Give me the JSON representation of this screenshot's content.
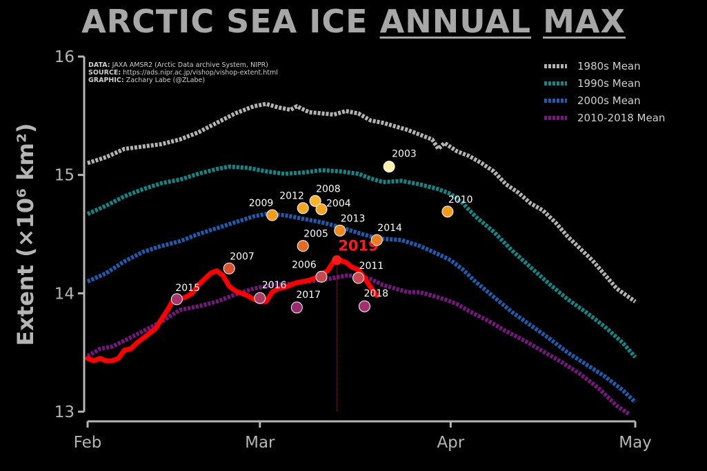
{
  "title": {
    "part1": "ARCTIC SEA ICE",
    "part2": "ANNUAL",
    "part3": "MAX"
  },
  "credits": [
    {
      "key": "DATA:",
      "text": " JAXA AMSR2 (Arctic Data archive System, NIPR)"
    },
    {
      "key": "SOURCE:",
      "text": " https://ads.nipr.ac.jp/vishop/vishop-extent.html"
    },
    {
      "key": "GRAPHIC:",
      "text": " Zachary Labe (@ZLabe)"
    }
  ],
  "chart_data": {
    "type": "line",
    "ylabel": "Extent (×10⁶ km²)",
    "ylim": [
      13,
      16
    ],
    "yticks": [
      13,
      14,
      15,
      16
    ],
    "xlim": [
      0,
      89
    ],
    "xticks": [
      {
        "value": 0,
        "label": "Feb"
      },
      {
        "value": 28,
        "label": "Mar"
      },
      {
        "value": 59,
        "label": "Apr"
      },
      {
        "value": 89,
        "label": "May"
      }
    ],
    "x_units": "days since Feb 1",
    "legend_position": "top-right",
    "series": [
      {
        "name": "1980s Mean",
        "color": "#b3b3b3",
        "style": "dashed",
        "points": [
          [
            0,
            15.1
          ],
          [
            3,
            15.15
          ],
          [
            6,
            15.22
          ],
          [
            9,
            15.24
          ],
          [
            12,
            15.26
          ],
          [
            15,
            15.3
          ],
          [
            18,
            15.36
          ],
          [
            21,
            15.44
          ],
          [
            24,
            15.52
          ],
          [
            27,
            15.58
          ],
          [
            29,
            15.6
          ],
          [
            31,
            15.57
          ],
          [
            33,
            15.55
          ],
          [
            34,
            15.58
          ],
          [
            36,
            15.53
          ],
          [
            38,
            15.52
          ],
          [
            40,
            15.51
          ],
          [
            42,
            15.54
          ],
          [
            44,
            15.52
          ],
          [
            46,
            15.46
          ],
          [
            48,
            15.44
          ],
          [
            50,
            15.41
          ],
          [
            52,
            15.38
          ],
          [
            54,
            15.34
          ],
          [
            56,
            15.3
          ],
          [
            57,
            15.22
          ],
          [
            58,
            15.27
          ],
          [
            60,
            15.2
          ],
          [
            62,
            15.16
          ],
          [
            64,
            15.1
          ],
          [
            66,
            15.03
          ],
          [
            68,
            14.92
          ],
          [
            70,
            14.85
          ],
          [
            72,
            14.76
          ],
          [
            74,
            14.7
          ],
          [
            76,
            14.6
          ],
          [
            78,
            14.48
          ],
          [
            80,
            14.38
          ],
          [
            82,
            14.28
          ],
          [
            84,
            14.16
          ],
          [
            86,
            14.04
          ],
          [
            89,
            13.93
          ]
        ]
      },
      {
        "name": "1990s Mean",
        "color": "#0d8a88",
        "style": "dashed",
        "points": [
          [
            0,
            14.67
          ],
          [
            3,
            14.74
          ],
          [
            6,
            14.82
          ],
          [
            9,
            14.88
          ],
          [
            12,
            14.93
          ],
          [
            15,
            14.96
          ],
          [
            18,
            15.01
          ],
          [
            21,
            15.05
          ],
          [
            23,
            15.07
          ],
          [
            26,
            15.06
          ],
          [
            29,
            15.03
          ],
          [
            32,
            15.01
          ],
          [
            35,
            15.02
          ],
          [
            38,
            15.04
          ],
          [
            41,
            15.03
          ],
          [
            44,
            15.01
          ],
          [
            46,
            14.97
          ],
          [
            48,
            14.94
          ],
          [
            51,
            14.95
          ],
          [
            54,
            14.92
          ],
          [
            57,
            14.88
          ],
          [
            59,
            14.84
          ],
          [
            61,
            14.76
          ],
          [
            63,
            14.65
          ],
          [
            66,
            14.52
          ],
          [
            69,
            14.36
          ],
          [
            72,
            14.22
          ],
          [
            75,
            14.08
          ],
          [
            78,
            13.95
          ],
          [
            81,
            13.84
          ],
          [
            84,
            13.72
          ],
          [
            87,
            13.58
          ],
          [
            89,
            13.46
          ]
        ]
      },
      {
        "name": "2000s Mean",
        "color": "#1a5fb4",
        "style": "dashed",
        "points": [
          [
            0,
            14.1
          ],
          [
            3,
            14.17
          ],
          [
            6,
            14.27
          ],
          [
            9,
            14.35
          ],
          [
            12,
            14.4
          ],
          [
            15,
            14.44
          ],
          [
            18,
            14.5
          ],
          [
            21,
            14.55
          ],
          [
            24,
            14.6
          ],
          [
            27,
            14.65
          ],
          [
            29,
            14.67
          ],
          [
            32,
            14.66
          ],
          [
            35,
            14.63
          ],
          [
            38,
            14.6
          ],
          [
            41,
            14.56
          ],
          [
            44,
            14.51
          ],
          [
            46,
            14.48
          ],
          [
            48,
            14.46
          ],
          [
            51,
            14.45
          ],
          [
            54,
            14.4
          ],
          [
            57,
            14.33
          ],
          [
            59,
            14.28
          ],
          [
            61,
            14.2
          ],
          [
            63,
            14.1
          ],
          [
            66,
            13.97
          ],
          [
            69,
            13.84
          ],
          [
            72,
            13.73
          ],
          [
            75,
            13.62
          ],
          [
            78,
            13.5
          ],
          [
            81,
            13.4
          ],
          [
            84,
            13.3
          ],
          [
            87,
            13.18
          ],
          [
            89,
            13.08
          ]
        ]
      },
      {
        "name": "2010-2018 Mean",
        "color": "#7a1682",
        "style": "dashed",
        "points": [
          [
            0,
            13.47
          ],
          [
            2,
            13.53
          ],
          [
            4,
            13.55
          ],
          [
            6,
            13.6
          ],
          [
            9,
            13.68
          ],
          [
            12,
            13.76
          ],
          [
            15,
            13.86
          ],
          [
            18,
            13.89
          ],
          [
            21,
            13.93
          ],
          [
            24,
            13.99
          ],
          [
            27,
            14.04
          ],
          [
            30,
            14.07
          ],
          [
            33,
            14.08
          ],
          [
            36,
            14.1
          ],
          [
            39,
            14.12
          ],
          [
            42,
            14.15
          ],
          [
            44,
            14.15
          ],
          [
            46,
            14.12
          ],
          [
            48,
            14.07
          ],
          [
            50,
            14.04
          ],
          [
            52,
            14.01
          ],
          [
            54,
            14.01
          ],
          [
            56,
            13.98
          ],
          [
            58,
            13.95
          ],
          [
            60,
            13.91
          ],
          [
            62,
            13.85
          ],
          [
            65,
            13.77
          ],
          [
            68,
            13.68
          ],
          [
            71,
            13.6
          ],
          [
            74,
            13.51
          ],
          [
            77,
            13.42
          ],
          [
            80,
            13.32
          ],
          [
            83,
            13.2
          ],
          [
            86,
            13.05
          ],
          [
            88,
            12.98
          ]
        ]
      },
      {
        "name": "2019",
        "color": "#ff0000",
        "style": "solid",
        "points": [
          [
            0,
            13.45
          ],
          [
            1,
            13.43
          ],
          [
            2,
            13.45
          ],
          [
            3,
            13.43
          ],
          [
            4,
            13.43
          ],
          [
            5,
            13.45
          ],
          [
            6,
            13.52
          ],
          [
            7,
            13.53
          ],
          [
            8,
            13.58
          ],
          [
            9,
            13.62
          ],
          [
            10,
            13.66
          ],
          [
            11,
            13.7
          ],
          [
            12,
            13.78
          ],
          [
            13,
            13.86
          ],
          [
            14,
            13.95
          ],
          [
            15,
            13.95
          ],
          [
            16,
            13.97
          ],
          [
            17,
            14.0
          ],
          [
            18,
            14.07
          ],
          [
            19,
            14.12
          ],
          [
            20,
            14.17
          ],
          [
            21,
            14.19
          ],
          [
            22,
            14.15
          ],
          [
            23,
            14.06
          ],
          [
            24,
            14.02
          ],
          [
            25,
            14.0
          ],
          [
            26,
            13.98
          ],
          [
            27,
            13.95
          ],
          [
            28,
            13.93
          ],
          [
            29,
            13.93
          ],
          [
            30,
            14.01
          ],
          [
            31,
            14.04
          ],
          [
            32,
            14.05
          ],
          [
            33,
            14.07
          ],
          [
            34,
            14.09
          ],
          [
            35,
            14.1
          ],
          [
            36,
            14.11
          ],
          [
            37,
            14.13
          ],
          [
            38,
            14.16
          ],
          [
            39,
            14.19
          ],
          [
            40,
            14.27
          ],
          [
            41,
            14.28
          ],
          [
            42,
            14.26
          ],
          [
            43,
            14.22
          ],
          [
            44,
            14.2
          ],
          [
            45,
            14.13
          ],
          [
            46,
            14.05
          ],
          [
            47,
            13.98
          ]
        ]
      }
    ],
    "annual_maxima": [
      {
        "year": "2003",
        "x": 49,
        "y": 15.07,
        "color": "#fff2a8"
      },
      {
        "year": "2008",
        "x": 37,
        "y": 14.78,
        "color": "#f7b32b"
      },
      {
        "year": "2012",
        "x": 35,
        "y": 14.72,
        "color": "#f5a623"
      },
      {
        "year": "2004",
        "x": 38,
        "y": 14.71,
        "color": "#f5a623"
      },
      {
        "year": "2010",
        "x": 58.5,
        "y": 14.69,
        "color": "#f29b1d"
      },
      {
        "year": "2009",
        "x": 30,
        "y": 14.66,
        "color": "#f29b1d"
      },
      {
        "year": "2013",
        "x": 41,
        "y": 14.53,
        "color": "#ee8a1c"
      },
      {
        "year": "2014",
        "x": 47,
        "y": 14.45,
        "color": "#ea7d1f"
      },
      {
        "year": "2005",
        "x": 35,
        "y": 14.4,
        "color": "#e56a22"
      },
      {
        "year": "2007",
        "x": 23,
        "y": 14.21,
        "color": "#d9512e"
      },
      {
        "year": "2006",
        "x": 38,
        "y": 14.14,
        "color": "#c84853"
      },
      {
        "year": "2011",
        "x": 44,
        "y": 14.13,
        "color": "#c84853"
      },
      {
        "year": "2016",
        "x": 28,
        "y": 13.96,
        "color": "#b03a64"
      },
      {
        "year": "2015",
        "x": 14.5,
        "y": 13.95,
        "color": "#a8356a"
      },
      {
        "year": "2018",
        "x": 45,
        "y": 13.89,
        "color": "#a32f6d"
      },
      {
        "year": "2017",
        "x": 34,
        "y": 13.88,
        "color": "#9a2a70"
      }
    ],
    "highlight": {
      "year": "2019",
      "x": 40.5,
      "y": 14.28,
      "color": "#ff1a1a"
    }
  }
}
